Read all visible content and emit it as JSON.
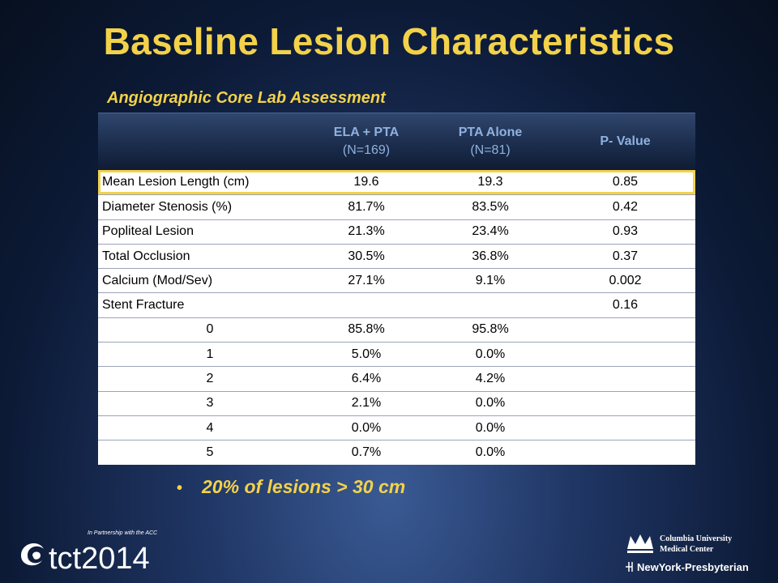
{
  "slide": {
    "title": "Baseline Lesion Characteristics",
    "subtitle": "Angiographic Core Lab Assessment",
    "bullet": "20% of lesions > 30 cm"
  },
  "table": {
    "headers": [
      {
        "label": "",
        "sub": ""
      },
      {
        "label": "ELA + PTA",
        "sub": "(N=169)"
      },
      {
        "label": "PTA Alone",
        "sub": "(N=81)"
      },
      {
        "label": "P- Value",
        "sub": ""
      }
    ],
    "rows": [
      {
        "label": "Mean Lesion Length (cm)",
        "ela": "19.6",
        "pta": "19.3",
        "p": "0.85"
      },
      {
        "label": "Diameter Stenosis (%)",
        "ela": "81.7%",
        "pta": "83.5%",
        "p": "0.42"
      },
      {
        "label": "Popliteal Lesion",
        "ela": "21.3%",
        "pta": "23.4%",
        "p": "0.93"
      },
      {
        "label": "Total Occlusion",
        "ela": "30.5%",
        "pta": "36.8%",
        "p": "0.37"
      },
      {
        "label": "Calcium (Mod/Sev)",
        "ela": "27.1%",
        "pta": "9.1%",
        "p": "0.002"
      },
      {
        "label": "Stent Fracture",
        "ela": "",
        "pta": "",
        "p": "0.16"
      },
      {
        "label": "0",
        "ela": "85.8%",
        "pta": "95.8%",
        "p": ""
      },
      {
        "label": "1",
        "ela": "5.0%",
        "pta": "0.0%",
        "p": ""
      },
      {
        "label": "2",
        "ela": "6.4%",
        "pta": "4.2%",
        "p": ""
      },
      {
        "label": "3",
        "ela": "2.1%",
        "pta": "0.0%",
        "p": ""
      },
      {
        "label": "4",
        "ela": "0.0%",
        "pta": "0.0%",
        "p": ""
      },
      {
        "label": "5",
        "ela": "0.7%",
        "pta": "0.0%",
        "p": ""
      }
    ]
  },
  "logos": {
    "left_main": "tct2014",
    "left_tagline": "In Partnership with the ACC",
    "right_line1": "Columbia University",
    "right_line2": "Medical Center",
    "right_line3": "NewYork-Presbyterian"
  },
  "colors": {
    "accent_yellow": "#f3d24a",
    "header_text": "#8fb1df",
    "background_dark": "#0c1a36"
  }
}
